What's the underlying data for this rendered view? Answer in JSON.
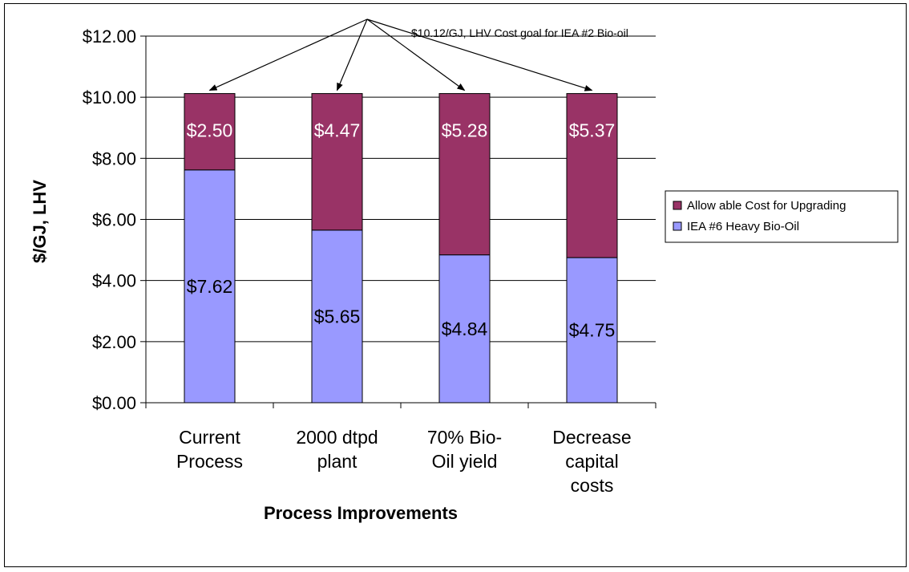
{
  "chart_data": {
    "type": "bar",
    "stacked": true,
    "categories": [
      [
        "Current",
        "Process"
      ],
      [
        "2000 dtpd",
        "plant"
      ],
      [
        "70% Bio-",
        "Oil yield"
      ],
      [
        "Decrease",
        "capital",
        "costs"
      ]
    ],
    "series": [
      {
        "name": "IEA #6 Heavy Bio-Oil",
        "color": "#9999ff",
        "values": [
          7.62,
          5.65,
          4.84,
          4.75
        ],
        "labels": [
          "$7.62",
          "$5.65",
          "$4.84",
          "$4.75"
        ]
      },
      {
        "name": "Allow able Cost for Upgrading",
        "color": "#993366",
        "values": [
          2.5,
          4.47,
          5.28,
          5.37
        ],
        "labels": [
          "$2.50",
          "$4.47",
          "$5.28",
          "$5.37"
        ]
      }
    ],
    "xlabel": "Process Improvements",
    "ylabel": "$/GJ, LHV",
    "ylim": [
      0,
      12
    ],
    "yticks": [
      0,
      2,
      4,
      6,
      8,
      10,
      12
    ],
    "ytick_labels": [
      "$0.00",
      "$2.00",
      "$4.00",
      "$6.00",
      "$8.00",
      "$10.00",
      "$12.00"
    ],
    "grid": true,
    "legend_position": "right",
    "legend_order": [
      "Allow able Cost for Upgrading",
      "IEA #6 Heavy Bio-Oil"
    ],
    "annotation": {
      "text": "$10.12/GJ, LHV Cost goal for IEA #2 Bio-oil",
      "target_value": 10.12
    }
  }
}
